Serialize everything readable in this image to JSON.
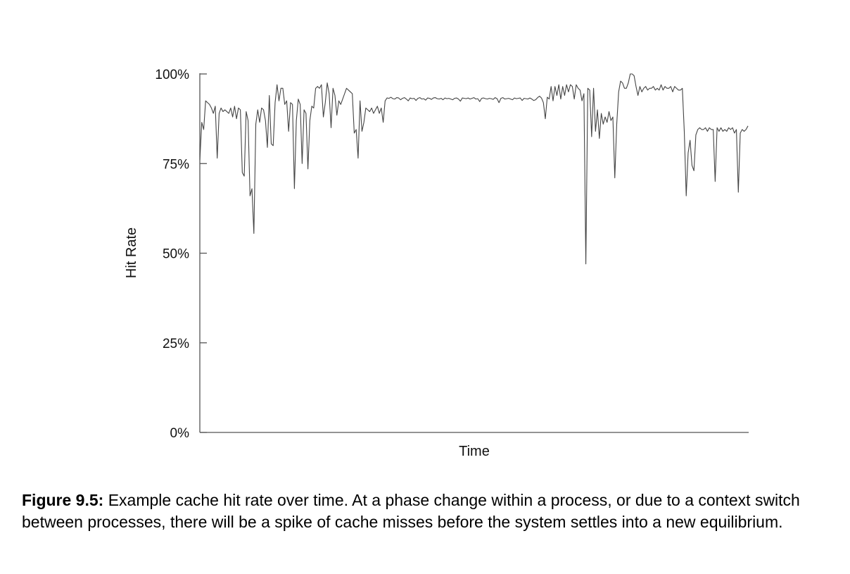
{
  "figure": {
    "caption_label": "Figure 9.5:",
    "caption_text": " Example cache hit rate over time. At a phase change within a process, or due to a context switch between processes, there will be a spike of cache misses before the system settles into a new equilibrium."
  },
  "chart_data": {
    "type": "line",
    "title": "",
    "xlabel": "Time",
    "ylabel": "Hit Rate",
    "ylim": [
      0,
      100
    ],
    "yticks": [
      0,
      25,
      50,
      75,
      100
    ],
    "ytick_labels": [
      "0%",
      "25%",
      "50%",
      "75%",
      "100%"
    ],
    "xticks": [],
    "grid": false,
    "legend": "none",
    "line_color": "#444444",
    "series": [
      {
        "values": [
          76,
          86.5,
          84.5,
          92.5,
          92,
          91.5,
          90.5,
          89,
          91,
          76.5,
          89,
          90.5,
          89.5,
          90,
          89.5,
          89,
          90.5,
          88,
          91,
          87.5,
          90.5,
          90,
          72.5,
          71.5,
          89.5,
          87,
          66,
          68,
          55.5,
          86,
          90,
          86.5,
          90.5,
          90,
          87,
          79.5,
          94,
          80.5,
          80,
          92,
          97,
          92.5,
          96,
          96,
          91.5,
          92.5,
          84,
          92,
          91.5,
          68,
          87,
          93,
          91.5,
          75,
          90,
          89,
          73.5,
          87,
          91,
          90.5,
          96,
          96.5,
          96,
          97,
          88,
          92,
          97.5,
          94.5,
          85,
          96,
          94,
          88.5,
          92.5,
          91.5,
          93,
          94.5,
          96,
          95.5,
          95,
          94.5,
          83.5,
          84.5,
          76.5,
          92.5,
          84,
          86.5,
          90.5,
          90,
          89.5,
          90.5,
          89,
          90,
          91,
          89,
          90.5,
          86.5,
          92.5,
          93.3,
          93.2,
          93.5,
          93.1,
          93,
          93.4,
          93.3,
          92.8,
          93.2,
          93.4,
          93,
          92.5,
          93.3,
          93.1,
          93.2,
          92.6,
          93.2,
          93.4,
          93,
          93.1,
          92.7,
          93.3,
          93.2,
          92.9,
          93.3,
          93.4,
          93.1,
          93,
          93.2,
          92.8,
          93.3,
          93.1,
          93.2,
          93,
          92.8,
          93.2,
          93.3,
          93,
          92.4,
          93.3,
          93.2,
          93.1,
          93.3,
          93,
          93.2,
          93.4,
          93,
          93.1,
          92.3,
          93.2,
          93.3,
          93.1,
          93,
          93.2,
          93.1,
          92.9,
          93.4,
          93.1,
          92,
          93.2,
          93.4,
          93,
          93.1,
          93.2,
          93,
          92.8,
          93.3,
          93.1,
          93.2,
          93.3,
          92.6,
          93.2,
          93.1,
          93,
          93.3,
          93,
          92.6,
          92.8,
          93.4,
          93.8,
          93.3,
          92,
          87.5,
          93.5,
          93,
          96.5,
          92.5,
          96.5,
          94,
          97,
          93,
          96.5,
          94,
          97,
          95,
          97,
          96.5,
          93,
          97,
          96,
          95.5,
          92.5,
          94.5,
          47,
          96,
          95.5,
          82.5,
          96,
          84,
          90,
          82,
          89,
          86,
          88,
          86.5,
          89.5,
          87,
          88,
          71,
          86,
          95,
          98,
          97.5,
          96,
          96,
          97.5,
          100,
          100,
          99.5,
          96.5,
          94,
          96.5,
          95,
          96,
          96.5,
          95.5,
          96,
          96,
          96.5,
          95.5,
          96,
          95.5,
          97,
          95.5,
          96.5,
          96,
          96,
          96.5,
          95,
          96.5,
          96,
          95.5,
          95.5,
          96,
          84,
          66,
          78,
          81.5,
          74.5,
          73,
          83,
          84.5,
          85,
          84.5,
          84.5,
          85,
          84,
          85,
          84.5,
          84.5,
          70,
          85,
          84,
          85,
          84,
          84.5,
          84,
          85,
          84.5,
          85,
          83.5,
          84.5,
          67,
          83.5,
          84.5,
          84,
          84.5,
          85.5
        ]
      }
    ]
  }
}
